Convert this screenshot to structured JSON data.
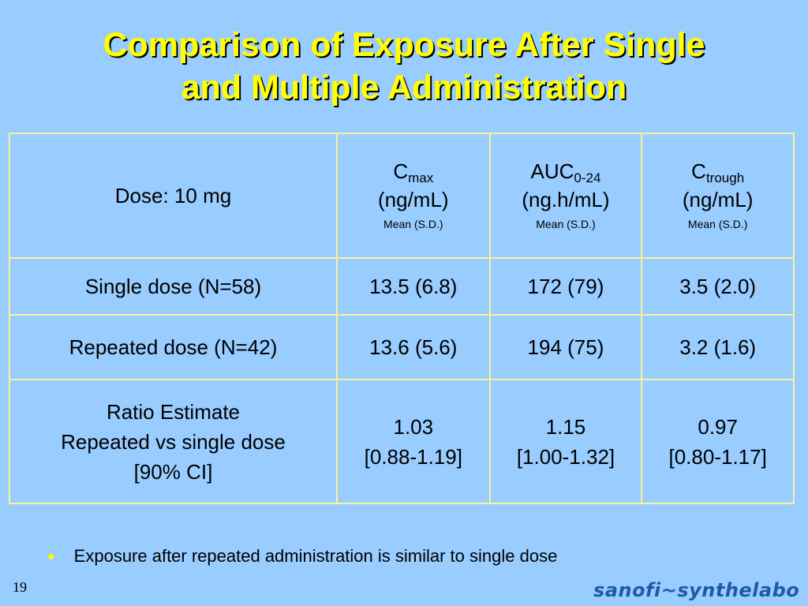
{
  "slide": {
    "title_line1": "Comparison of Exposure After Single",
    "title_line2": "and Multiple Administration",
    "page_number": "19",
    "logo": "sanofi~synthelabo",
    "bullet": "Exposure after repeated administration is similar to single dose"
  },
  "table": {
    "header": {
      "dose_label": "Dose: 10 mg",
      "columns": [
        {
          "main": "C",
          "sub": "max",
          "unit": "(ng/mL)",
          "note": "Mean (S.D.)"
        },
        {
          "main": "AUC",
          "sub": "0-24",
          "unit": "(ng.h/mL)",
          "note": "Mean (S.D.)"
        },
        {
          "main": "C",
          "sub": "trough",
          "unit": "(ng/mL)",
          "note": "Mean (S.D.)"
        }
      ]
    },
    "rows": [
      {
        "label": "Single dose  (N=58)",
        "values": [
          "13.5 (6.8)",
          "172 (79)",
          "3.5 (2.0)"
        ]
      },
      {
        "label": "Repeated dose  (N=42)",
        "values": [
          "13.6 (5.6)",
          "194 (75)",
          "3.2 (1.6)"
        ]
      }
    ],
    "ratio": {
      "label_lines": [
        "Ratio Estimate",
        "Repeated vs single dose",
        "[90% CI]"
      ],
      "values": [
        {
          "estimate": "1.03",
          "ci": "[0.88-1.19]"
        },
        {
          "estimate": "1.15",
          "ci": "[1.00-1.32]"
        },
        {
          "estimate": "0.97",
          "ci": "[0.80-1.17]"
        }
      ]
    }
  },
  "colors": {
    "background": "#99ccff",
    "title": "#ffff00",
    "border": "#f6f39a",
    "logo": "#1e5aa8"
  }
}
